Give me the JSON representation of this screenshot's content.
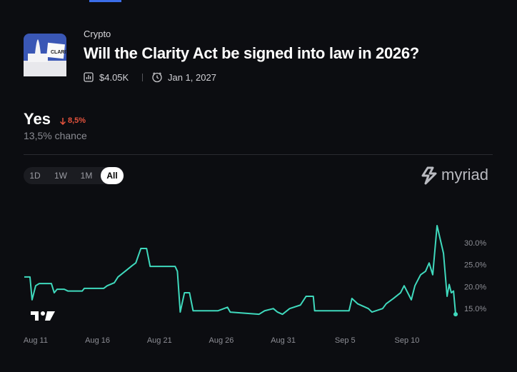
{
  "market": {
    "category": "Crypto",
    "title": "Will the Clarity Act be signed into law in 2026?",
    "volume": "$4.05K",
    "end_date": "Jan 1, 2027"
  },
  "outcome": {
    "name": "Yes",
    "change": "8,5%",
    "chance": "13,5% chance"
  },
  "ranges": [
    "1D",
    "1W",
    "1M",
    "All"
  ],
  "brand": "myriad",
  "chart_data": {
    "type": "line",
    "x": [
      -0.92,
      -0.46,
      -0.29,
      0,
      0.29,
      1.27,
      1.5,
      1.73,
      2.31,
      2.6,
      3.76,
      3.93,
      5.49,
      5.78,
      6.36,
      6.65,
      7.23,
      7.8,
      8.09,
      8.5,
      8.96,
      9.25,
      11.27,
      11.45,
      11.68,
      12.02,
      12.43,
      12.72,
      14.74,
      15.5,
      15.72,
      18.04,
      18.5,
      19.2,
      19.54,
      19.94,
      20.52,
      21.39,
      21.85,
      22.43,
      22.54,
      25.32,
      25.55,
      26.01,
      26.88,
      27.17,
      28.03,
      28.32,
      28.9,
      29.48,
      29.77,
      30.35,
      30.64,
      31.1,
      31.5,
      31.79,
      32.08,
      32.43,
      32.95,
      33.24,
      33.41,
      33.58,
      33.76,
      33.93
    ],
    "series": [
      {
        "color": "#3fd9bd",
        "values": [
          22.2,
          22.2,
          17,
          20.2,
          20.7,
          20.7,
          18.6,
          19.4,
          19.4,
          19,
          19,
          19.6,
          19.6,
          20.2,
          20.9,
          22.2,
          23.5,
          24.8,
          25.4,
          28.7,
          28.7,
          24.6,
          24.6,
          23.5,
          14.2,
          18.6,
          18.6,
          14.5,
          14.5,
          15.3,
          14.2,
          13.7,
          14.5,
          15,
          14.2,
          13.7,
          15,
          15.8,
          17.8,
          17.8,
          14.5,
          14.5,
          17.3,
          16.1,
          15,
          14.2,
          15,
          16.1,
          17.3,
          18.6,
          20.2,
          17,
          20.2,
          22.7,
          23.5,
          25.4,
          22.7,
          33.9,
          27.6,
          17.8,
          20.5,
          18.6,
          19,
          13.7
        ]
      }
    ],
    "xlim": [
      -0.92,
      34.1
    ],
    "xticks": [
      {
        "value": 0,
        "label": "Aug 11"
      },
      {
        "value": 5,
        "label": "Aug 16"
      },
      {
        "value": 10,
        "label": "Aug 21"
      },
      {
        "value": 15,
        "label": "Aug 26"
      },
      {
        "value": 20,
        "label": "Aug 31"
      },
      {
        "value": 25,
        "label": "Sep 5"
      },
      {
        "value": 30,
        "label": "Sep 10"
      }
    ],
    "ylim": [
      12.1,
      36.5
    ],
    "yticks": [
      {
        "value": 15,
        "label": "15.0%"
      },
      {
        "value": 20,
        "label": "20.0%"
      },
      {
        "value": 25,
        "label": "25.0%"
      },
      {
        "value": 30,
        "label": "30.0%"
      }
    ]
  }
}
